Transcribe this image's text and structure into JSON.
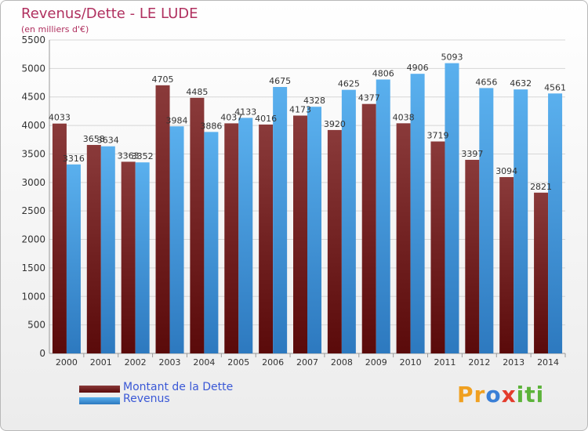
{
  "title": "Revenus/Dette - LE LUDE",
  "subtitle": "(en milliers d'€)",
  "logo": "Proxiti",
  "colors": {
    "title": "#b0305f",
    "dette_top": "#8a3a3a",
    "dette_bottom": "#5a0a0a",
    "revenus_top": "#5ab0ee",
    "revenus_bottom": "#2d79bf",
    "legend_text": "#3a58d6"
  },
  "chart_data": {
    "type": "bar",
    "categories": [
      "2000",
      "2001",
      "2002",
      "2003",
      "2004",
      "2005",
      "2006",
      "2007",
      "2008",
      "2009",
      "2010",
      "2011",
      "2012",
      "2013",
      "2014"
    ],
    "series": [
      {
        "name": "Montant de la Dette",
        "values": [
          4033,
          3658,
          3363,
          4705,
          4485,
          4037,
          4016,
          4173,
          3920,
          4377,
          4038,
          3719,
          3397,
          3094,
          2821
        ],
        "labels": [
          "4033",
          "3658",
          "3363",
          "4705",
          "4485",
          "4037",
          "4016",
          "4173",
          "3920",
          "4377",
          "4038",
          "3719",
          "3397",
          "3094",
          "2821"
        ]
      },
      {
        "name": "Revenus",
        "values": [
          3316,
          3634,
          3352,
          3984,
          3886,
          4133,
          4675,
          4328,
          4625,
          4806,
          4906,
          5093,
          4656,
          4632,
          4561
        ],
        "labels": [
          "3316",
          "3634",
          "3352",
          "3984",
          "3886",
          "4133",
          "4675",
          "4328",
          "4625",
          "4806",
          "4906",
          "5093",
          "4656",
          "4632",
          "4561"
        ]
      }
    ],
    "ylim": [
      0,
      5500
    ],
    "yticks": [
      "0",
      "500",
      "1000",
      "1500",
      "2000",
      "2500",
      "3000",
      "3500",
      "4000",
      "4500",
      "5000",
      "5500"
    ],
    "grid": true,
    "legend_placement": "bottom-left"
  }
}
